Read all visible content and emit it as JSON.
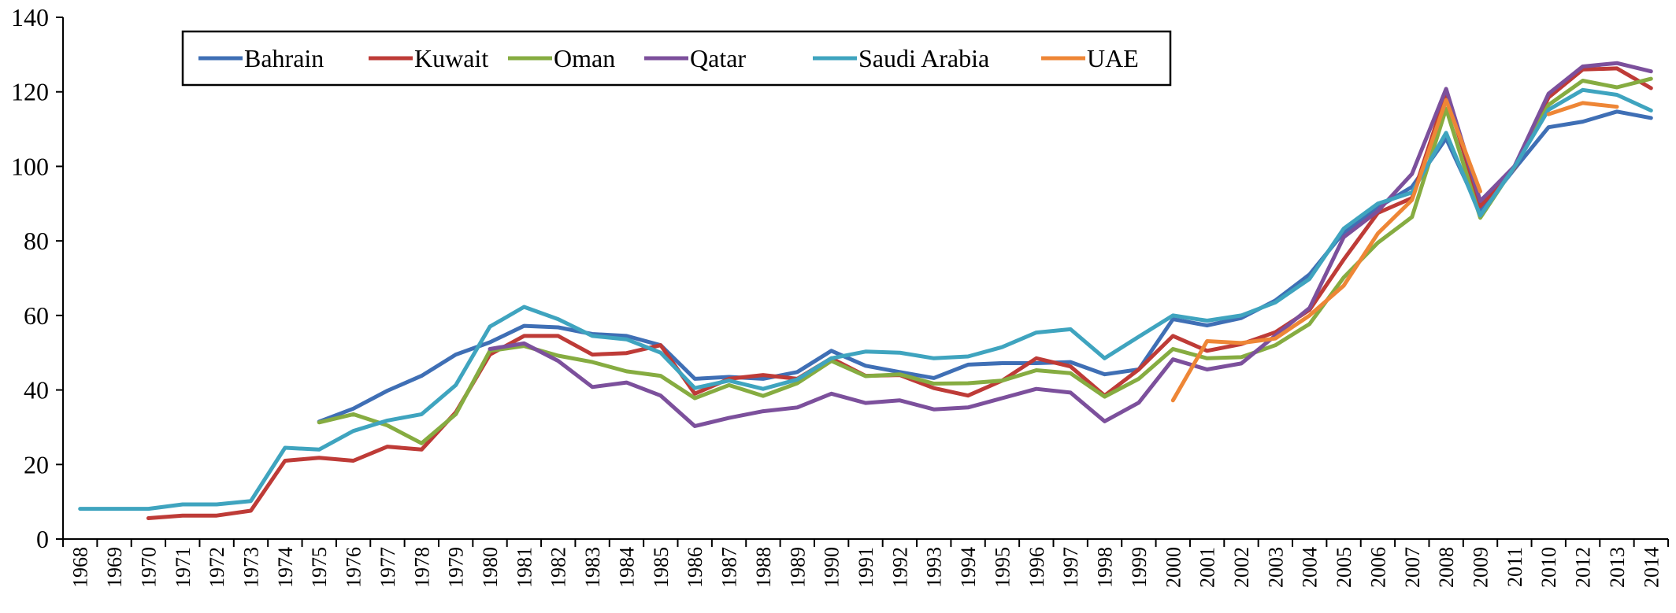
{
  "chart_data": {
    "type": "line",
    "title": "",
    "xlabel": "",
    "ylabel": "",
    "ylim": [
      0,
      140
    ],
    "yticks": [
      "0",
      "20",
      "40",
      "60",
      "80",
      "100",
      "120",
      "140"
    ],
    "categories": [
      "1968",
      "1969",
      "1970",
      "1971",
      "1972",
      "1973",
      "1974",
      "1975",
      "1976",
      "1977",
      "1978",
      "1979",
      "1980",
      "1981",
      "1982",
      "1983",
      "1984",
      "1985",
      "1986",
      "1987",
      "1988",
      "1989",
      "1990",
      "1991",
      "1992",
      "1993",
      "1994",
      "1995",
      "1996",
      "1997",
      "1998",
      "1999",
      "2000",
      "2001",
      "2002",
      "2003",
      "2004",
      "2005",
      "2006",
      "2007",
      "2008",
      "2009",
      "2011",
      "2010",
      "2012",
      "2013",
      "2014"
    ],
    "grid": false,
    "legend_position": "top-left",
    "series": [
      {
        "name": "Bahrain",
        "color": "#3f6fb5",
        "values": [
          null,
          null,
          null,
          null,
          null,
          null,
          null,
          31.5,
          35,
          39.8,
          43.8,
          49.5,
          52.8,
          57.2,
          56.8,
          55,
          54.5,
          52,
          43,
          43.5,
          43,
          44.8,
          50.5,
          46.5,
          44.8,
          43.2,
          46.8,
          47.2,
          47.2,
          47.5,
          44.2,
          45.5,
          59,
          57.3,
          59.3,
          64,
          71,
          82.3,
          89,
          94.5,
          107.5,
          87.8,
          99.3,
          110.5,
          112,
          114.7,
          113
        ]
      },
      {
        "name": "Kuwait",
        "color": "#be3b37",
        "values": [
          null,
          null,
          5.6,
          6.3,
          6.3,
          7.6,
          21,
          21.8,
          21,
          24.8,
          24,
          34,
          49.5,
          54.5,
          54.5,
          49.5,
          49.9,
          52,
          39,
          43,
          44,
          43,
          48.5,
          43.8,
          44,
          40.5,
          38.5,
          42.5,
          48.5,
          46.3,
          38.5,
          45.5,
          54.5,
          50.5,
          52.3,
          55.5,
          61.5,
          75,
          87.5,
          91.5,
          119.5,
          89.3,
          99.5,
          118.5,
          126,
          126.3,
          121
        ]
      },
      {
        "name": "Oman",
        "color": "#86ac41",
        "values": [
          null,
          null,
          null,
          null,
          null,
          null,
          null,
          31.3,
          33.5,
          30.5,
          25.7,
          33.5,
          50.5,
          51.8,
          49.2,
          47.5,
          45,
          43.8,
          37.8,
          41.3,
          38.4,
          41.8,
          47.8,
          43.7,
          44.2,
          41.7,
          41.8,
          42.5,
          45.3,
          44.5,
          38.2,
          43,
          51,
          48.5,
          48.8,
          52,
          57.7,
          70.2,
          79.5,
          86.4,
          115.5,
          86.2,
          100,
          116.5,
          123,
          121.2,
          123.5
        ]
      },
      {
        "name": "Qatar",
        "color": "#7c509c",
        "values": [
          null,
          null,
          null,
          null,
          null,
          null,
          null,
          null,
          null,
          null,
          null,
          null,
          51,
          52.5,
          47.8,
          40.8,
          42,
          38.5,
          30.3,
          32.5,
          34.3,
          35.3,
          39,
          36.5,
          37.2,
          34.8,
          35.3,
          37.8,
          40.3,
          39.3,
          31.6,
          36.6,
          48.2,
          45.5,
          47.1,
          54.6,
          62,
          81,
          88,
          98,
          120.8,
          90.7,
          100,
          119.5,
          126.8,
          127.7,
          125.5
        ]
      },
      {
        "name": "Saudi Arabia",
        "color": "#3fa4bf",
        "values": [
          8.1,
          8.1,
          8.1,
          9.3,
          9.3,
          10.2,
          24.5,
          24,
          29,
          31.8,
          33.5,
          41.3,
          57,
          62.3,
          59,
          54.5,
          53.6,
          50,
          40.5,
          42.5,
          40.3,
          42.8,
          48.5,
          50.3,
          50,
          48.5,
          49,
          51.5,
          55.4,
          56.3,
          48.5,
          54.3,
          60,
          58.6,
          60,
          63.5,
          69.8,
          83.3,
          90,
          93,
          109,
          86.8,
          99.8,
          115.2,
          120.5,
          119.2,
          115
        ]
      },
      {
        "name": "UAE",
        "color": "#ee8636",
        "values": [
          null,
          null,
          null,
          null,
          null,
          null,
          null,
          null,
          null,
          null,
          null,
          null,
          null,
          null,
          null,
          null,
          null,
          null,
          null,
          null,
          null,
          null,
          null,
          null,
          null,
          null,
          null,
          null,
          null,
          null,
          null,
          null,
          37.2,
          53.1,
          52.6,
          53.8,
          60,
          68,
          82,
          91,
          117.8,
          93.3,
          null,
          114,
          117,
          116,
          null
        ]
      }
    ]
  }
}
